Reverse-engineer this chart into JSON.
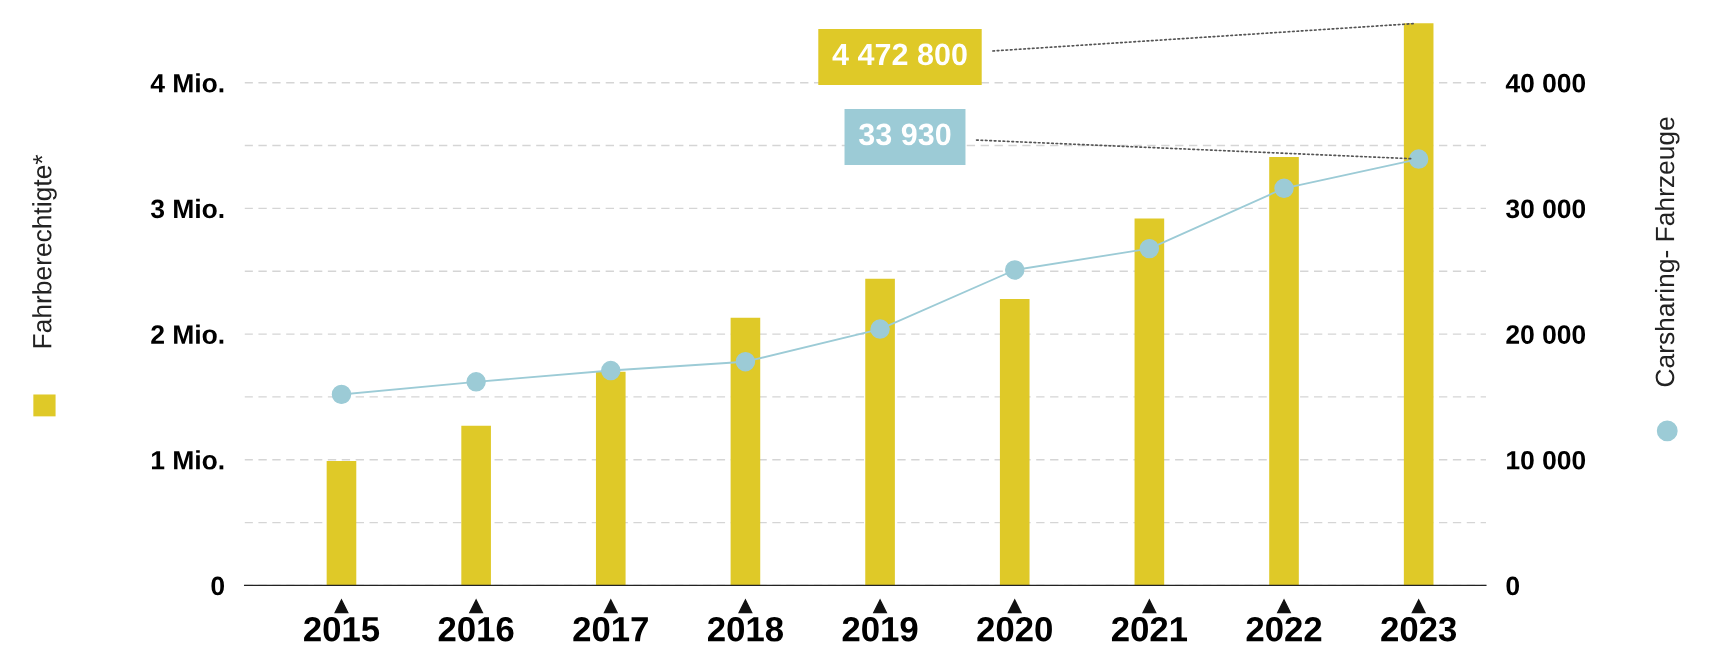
{
  "chart_data": {
    "type": "bar",
    "categories": [
      "2015",
      "2016",
      "2017",
      "2018",
      "2019",
      "2020",
      "2021",
      "2022",
      "2023"
    ],
    "ylabel": "Fahrberechtigte*",
    "y2label": "Carsharing- Fahrzeuge",
    "series": [
      {
        "color": "#dfc928",
        "values": [
          0.99,
          1.27,
          1.7,
          2.13,
          2.44,
          2.28,
          2.92,
          3.41,
          4.4728
        ]
      },
      {
        "type": "line",
        "axis": "y2",
        "color": "#9ccbd6",
        "marker": "circle",
        "line_style": "solid",
        "values": [
          15200,
          16200,
          17100,
          17800,
          20400,
          25100,
          26800,
          31600,
          33930
        ],
        "value_labels": [
          null,
          null,
          null,
          null,
          null,
          null,
          null,
          null,
          "33 930"
        ]
      }
    ],
    "ylim": [
      0,
      4.5
    ],
    "yticks": [
      {
        "value": 0,
        "label": "0"
      },
      {
        "value": 0.5,
        "label": null
      },
      {
        "value": 1,
        "label": "1 Mio."
      },
      {
        "value": 1.5,
        "label": null
      },
      {
        "value": 2,
        "label": "2 Mio."
      },
      {
        "value": 2.5,
        "label": null
      },
      {
        "value": 3,
        "label": "3 Mio."
      },
      {
        "value": 3.5,
        "label": null
      },
      {
        "value": 4,
        "label": "4 Mio."
      }
    ],
    "y2lim": [
      0,
      45000
    ],
    "y2ticks": [
      {
        "value": 0,
        "label": "0"
      },
      {
        "value": 10000,
        "label": "10 000"
      },
      {
        "value": 20000,
        "label": "20 000"
      },
      {
        "value": 30000,
        "label": "30 000"
      },
      {
        "value": 40000,
        "label": "40 000"
      }
    ],
    "annotations": [
      {
        "text": "4 472 800",
        "x": "2023",
        "y": 4.4728
      }
    ],
    "grid": "y",
    "legend": false
  }
}
